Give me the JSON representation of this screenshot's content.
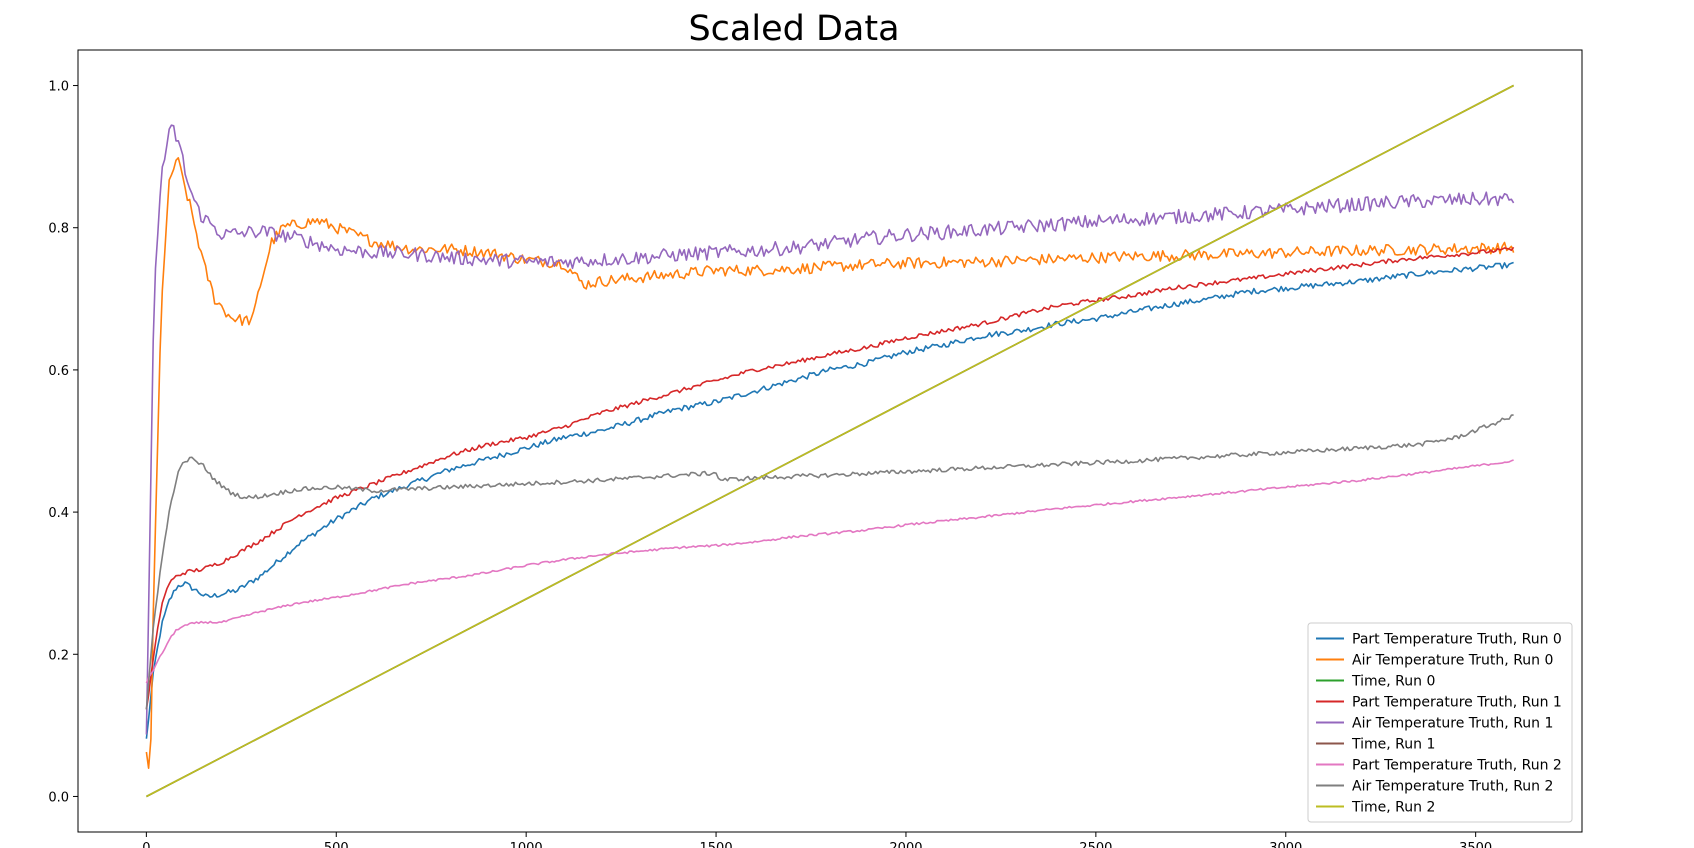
{
  "chart_data": {
    "type": "line",
    "title": "Scaled Data",
    "xlabel": "",
    "ylabel": "",
    "xlim": [
      -180,
      3780
    ],
    "ylim": [
      -0.05,
      1.05
    ],
    "x_ticks": [
      0,
      500,
      1000,
      1500,
      2000,
      2500,
      3000,
      3500
    ],
    "y_ticks": [
      0.0,
      0.2,
      0.4,
      0.6,
      0.8,
      1.0
    ],
    "x_tick_labels": [
      "0",
      "500",
      "1000",
      "1500",
      "2000",
      "2500",
      "3000",
      "3500"
    ],
    "y_tick_labels": [
      "0.0",
      "0.2",
      "0.4",
      "0.6",
      "0.8",
      "1.0"
    ],
    "grid": false,
    "legend_position": "bottom-right",
    "series": [
      {
        "name": "Part Temperature Truth, Run 0",
        "color": "#1f77b4",
        "noise": 0.004,
        "x": [
          0,
          20,
          40,
          60,
          80,
          100,
          130,
          160,
          200,
          240,
          300,
          400,
          500,
          600,
          700,
          800,
          900,
          1000,
          1100,
          1200,
          1300,
          1400,
          1500,
          1600,
          1700,
          1800,
          1900,
          2000,
          2100,
          2200,
          2300,
          2400,
          2500,
          2600,
          2700,
          2800,
          2900,
          3000,
          3100,
          3200,
          3300,
          3400,
          3500,
          3600
        ],
        "y": [
          0.08,
          0.18,
          0.24,
          0.275,
          0.295,
          0.3,
          0.29,
          0.28,
          0.285,
          0.29,
          0.31,
          0.355,
          0.39,
          0.42,
          0.44,
          0.46,
          0.475,
          0.49,
          0.505,
          0.515,
          0.53,
          0.545,
          0.555,
          0.57,
          0.585,
          0.6,
          0.61,
          0.625,
          0.635,
          0.648,
          0.655,
          0.665,
          0.672,
          0.682,
          0.692,
          0.7,
          0.71,
          0.715,
          0.72,
          0.725,
          0.732,
          0.738,
          0.743,
          0.748
        ]
      },
      {
        "name": "Air Temperature Truth, Run 0",
        "color": "#ff7f0e",
        "noise": 0.008,
        "x": [
          0,
          10,
          20,
          40,
          60,
          80,
          100,
          120,
          150,
          180,
          220,
          250,
          280,
          300,
          330,
          360,
          400,
          450,
          500,
          600,
          700,
          800,
          900,
          1000,
          1100,
          1150,
          1200,
          1300,
          1400,
          1500,
          1600,
          1700,
          1800,
          1900,
          2000,
          2200,
          2400,
          2600,
          2800,
          3000,
          3200,
          3400,
          3600
        ],
        "y": [
          0.06,
          0.03,
          0.3,
          0.7,
          0.86,
          0.9,
          0.86,
          0.82,
          0.75,
          0.7,
          0.675,
          0.67,
          0.67,
          0.72,
          0.78,
          0.8,
          0.805,
          0.81,
          0.8,
          0.78,
          0.77,
          0.77,
          0.765,
          0.755,
          0.75,
          0.72,
          0.725,
          0.73,
          0.735,
          0.74,
          0.74,
          0.742,
          0.745,
          0.748,
          0.75,
          0.752,
          0.756,
          0.76,
          0.762,
          0.765,
          0.768,
          0.77,
          0.772
        ]
      },
      {
        "name": "Time, Run 0",
        "color": "#2ca02c",
        "noise": 0,
        "x": [
          0,
          3600
        ],
        "y": [
          0.0,
          1.0
        ]
      },
      {
        "name": "Part Temperature Truth, Run 1",
        "color": "#d62728",
        "noise": 0.003,
        "x": [
          0,
          20,
          40,
          60,
          80,
          100,
          150,
          200,
          250,
          300,
          400,
          500,
          600,
          700,
          800,
          900,
          1000,
          1100,
          1200,
          1300,
          1400,
          1500,
          1600,
          1700,
          1800,
          1900,
          2000,
          2100,
          2200,
          2300,
          2400,
          2500,
          2600,
          2700,
          2800,
          2900,
          3000,
          3100,
          3200,
          3300,
          3400,
          3500,
          3600
        ],
        "y": [
          0.12,
          0.2,
          0.27,
          0.3,
          0.31,
          0.315,
          0.32,
          0.33,
          0.345,
          0.36,
          0.395,
          0.42,
          0.44,
          0.46,
          0.48,
          0.495,
          0.505,
          0.52,
          0.54,
          0.555,
          0.57,
          0.585,
          0.6,
          0.61,
          0.622,
          0.632,
          0.645,
          0.655,
          0.665,
          0.678,
          0.69,
          0.698,
          0.705,
          0.715,
          0.722,
          0.728,
          0.735,
          0.742,
          0.748,
          0.755,
          0.76,
          0.765,
          0.77
        ]
      },
      {
        "name": "Air Temperature Truth, Run 1",
        "color": "#9467bd",
        "noise": 0.01,
        "x": [
          0,
          10,
          20,
          40,
          60,
          70,
          90,
          110,
          140,
          200,
          300,
          400,
          500,
          600,
          700,
          800,
          900,
          1000,
          1100,
          1200,
          1300,
          1400,
          1500,
          1600,
          1700,
          1800,
          1900,
          2000,
          2200,
          2400,
          2600,
          2800,
          3000,
          3100,
          3200,
          3300,
          3400,
          3500,
          3600
        ],
        "y": [
          0.08,
          0.4,
          0.7,
          0.88,
          0.93,
          0.94,
          0.91,
          0.86,
          0.82,
          0.79,
          0.795,
          0.785,
          0.77,
          0.765,
          0.763,
          0.758,
          0.755,
          0.752,
          0.752,
          0.755,
          0.758,
          0.762,
          0.765,
          0.768,
          0.772,
          0.778,
          0.785,
          0.79,
          0.797,
          0.805,
          0.812,
          0.818,
          0.825,
          0.83,
          0.833,
          0.836,
          0.838,
          0.84,
          0.84
        ]
      },
      {
        "name": "Time, Run 1",
        "color": "#8c564b",
        "noise": 0,
        "x": [
          0,
          3600
        ],
        "y": [
          0.0,
          1.0
        ]
      },
      {
        "name": "Part Temperature Truth, Run 2",
        "color": "#e377c2",
        "noise": 0.0015,
        "x": [
          0,
          20,
          40,
          60,
          80,
          100,
          120,
          150,
          200,
          300,
          400,
          500,
          600,
          700,
          800,
          900,
          1000,
          1100,
          1200,
          1300,
          1400,
          1500,
          1600,
          1700,
          1800,
          1900,
          2000,
          2200,
          2400,
          2600,
          2800,
          3000,
          3200,
          3400,
          3600
        ],
        "y": [
          0.16,
          0.18,
          0.2,
          0.22,
          0.235,
          0.24,
          0.243,
          0.245,
          0.245,
          0.26,
          0.272,
          0.28,
          0.29,
          0.3,
          0.307,
          0.315,
          0.325,
          0.333,
          0.34,
          0.345,
          0.35,
          0.353,
          0.358,
          0.365,
          0.37,
          0.375,
          0.382,
          0.393,
          0.405,
          0.415,
          0.425,
          0.435,
          0.445,
          0.458,
          0.472
        ]
      },
      {
        "name": "Air Temperature Truth, Run 2",
        "color": "#7f7f7f",
        "noise": 0.003,
        "x": [
          0,
          20,
          40,
          60,
          80,
          100,
          120,
          150,
          180,
          220,
          260,
          300,
          400,
          500,
          600,
          800,
          1000,
          1200,
          1400,
          1500,
          1510,
          1600,
          1800,
          2000,
          2200,
          2400,
          2600,
          2800,
          3000,
          3200,
          3350,
          3450,
          3550,
          3600
        ],
        "y": [
          0.12,
          0.25,
          0.33,
          0.4,
          0.45,
          0.472,
          0.475,
          0.465,
          0.445,
          0.428,
          0.42,
          0.422,
          0.432,
          0.435,
          0.43,
          0.435,
          0.44,
          0.445,
          0.452,
          0.455,
          0.445,
          0.448,
          0.452,
          0.457,
          0.462,
          0.467,
          0.472,
          0.478,
          0.484,
          0.49,
          0.495,
          0.505,
          0.525,
          0.535
        ]
      },
      {
        "name": "Time, Run 2",
        "color": "#bcbd22",
        "noise": 0,
        "x": [
          0,
          3600
        ],
        "y": [
          0.0,
          1.0
        ]
      }
    ]
  }
}
